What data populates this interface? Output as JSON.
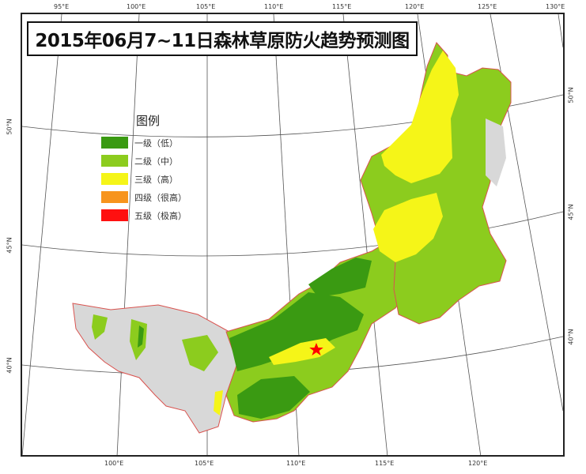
{
  "title": "2015年06月7~11日森林草原防火趋势预测图",
  "legend": {
    "title": "图例",
    "items": [
      {
        "label": "一级（低）",
        "color": "#3a9a12",
        "icon": "level-1-swatch"
      },
      {
        "label": "二级（中）",
        "color": "#8ccc1e",
        "icon": "level-2-swatch"
      },
      {
        "label": "三级（高）",
        "color": "#f5f518",
        "icon": "level-3-swatch"
      },
      {
        "label": "四级（很高）",
        "color": "#f7941d",
        "icon": "level-4-swatch"
      },
      {
        "label": "五级（极高）",
        "color": "#ff1010",
        "icon": "level-5-swatch"
      }
    ]
  },
  "graticule": {
    "top_lon": [
      "95°E",
      "100°E",
      "105°E",
      "110°E",
      "115°E",
      "120°E",
      "125°E",
      "130°E"
    ],
    "bottom_lon": [
      "100°E",
      "105°E",
      "110°E",
      "115°E",
      "120°E"
    ],
    "left_lat": [
      "50°N",
      "45°N",
      "40°N"
    ],
    "right_lat": [
      "50°N",
      "45°N",
      "40°N"
    ]
  },
  "colors": {
    "outside_region": "#d9d9d9",
    "border": "#d9534f",
    "marker": "#ff0000"
  },
  "marker_icon": "star-icon"
}
